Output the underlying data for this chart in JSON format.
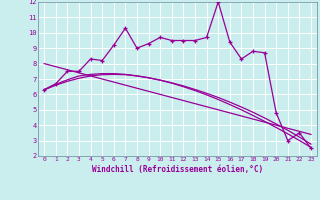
{
  "background_color": "#caeeed",
  "plot_bg_color": "#caeeed",
  "line_color": "#990099",
  "grid_color": "#aadddd",
  "x_data": [
    0,
    1,
    2,
    3,
    4,
    5,
    6,
    7,
    8,
    9,
    10,
    11,
    12,
    13,
    14,
    15,
    16,
    17,
    18,
    19,
    20,
    21,
    22,
    23
  ],
  "y_main": [
    6.3,
    6.7,
    7.5,
    7.5,
    8.3,
    8.2,
    9.2,
    10.3,
    9.0,
    9.3,
    9.7,
    9.5,
    9.5,
    9.5,
    9.7,
    12.0,
    9.4,
    8.3,
    8.8,
    8.7,
    4.8,
    3.0,
    3.5,
    2.5
  ],
  "y_trend_linear": [
    8.0,
    7.8,
    7.6,
    7.4,
    7.2,
    7.0,
    6.8,
    6.6,
    6.4,
    6.2,
    6.0,
    5.8,
    5.6,
    5.4,
    5.2,
    5.0,
    4.8,
    4.6,
    4.4,
    4.2,
    4.0,
    3.8,
    3.6,
    3.4
  ],
  "y_trend_curve1": [
    6.3,
    6.65,
    6.95,
    7.2,
    7.3,
    7.35,
    7.35,
    7.3,
    7.2,
    7.08,
    6.93,
    6.75,
    6.55,
    6.32,
    6.07,
    5.8,
    5.5,
    5.18,
    4.84,
    4.47,
    4.08,
    3.67,
    3.23,
    2.77
  ],
  "y_trend_curve2": [
    6.3,
    6.6,
    6.85,
    7.05,
    7.2,
    7.28,
    7.3,
    7.28,
    7.2,
    7.08,
    6.92,
    6.73,
    6.5,
    6.25,
    5.97,
    5.67,
    5.34,
    5.0,
    4.63,
    4.25,
    3.85,
    3.44,
    3.01,
    2.56
  ],
  "xlim": [
    -0.5,
    23.5
  ],
  "ylim": [
    2,
    12
  ],
  "xticks": [
    0,
    1,
    2,
    3,
    4,
    5,
    6,
    7,
    8,
    9,
    10,
    11,
    12,
    13,
    14,
    15,
    16,
    17,
    18,
    19,
    20,
    21,
    22,
    23
  ],
  "yticks": [
    2,
    3,
    4,
    5,
    6,
    7,
    8,
    9,
    10,
    11,
    12
  ],
  "xlabel": "Windchill (Refroidissement éolien,°C)"
}
